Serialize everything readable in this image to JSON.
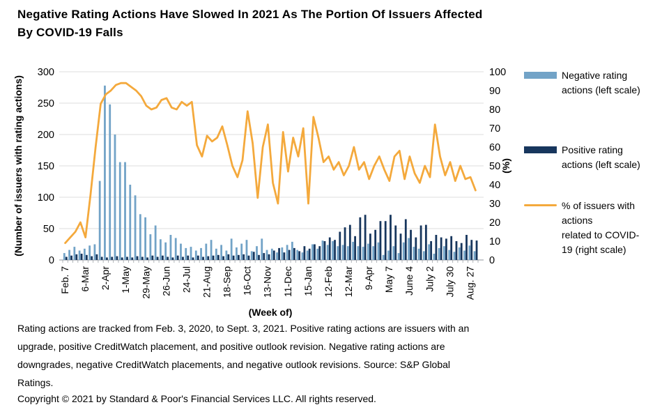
{
  "title": {
    "lines": [
      "Negative Rating Actions Have Slowed In 2021 As The Portion Of Issuers Affected",
      "By COVID-19 Falls"
    ]
  },
  "legend": {
    "items": [
      {
        "label": "Negative rating actions (left scale)",
        "lines": [
          "Negative rating",
          "actions (left scale)"
        ],
        "color": "#72A3C7"
      },
      {
        "label": "Positive rating actions (left scale)",
        "lines": [
          "Positive rating",
          "actions (left scale)"
        ],
        "color": "#17365D"
      },
      {
        "label": "% of issuers with actions related to COVID-19 (right scale)",
        "lines": [
          "% of issuers with",
          "actions",
          "related to COVID-",
          "19 (right scale)"
        ],
        "color": "#F4A93C"
      }
    ]
  },
  "chart_data": {
    "type": "bar",
    "subtype": "combo-bar-line",
    "x_axis_label": "(Week of)",
    "left_axis_label": "(Number of issuers with rating actions)",
    "right_axis_label": "(%)",
    "left_ylim": [
      0,
      300
    ],
    "right_ylim": [
      0,
      100
    ],
    "left_ticks": [
      0,
      50,
      100,
      150,
      200,
      250,
      300
    ],
    "right_ticks": [
      0,
      10,
      20,
      30,
      40,
      50,
      60,
      70,
      80,
      90,
      100
    ],
    "x_tick_labels": [
      "Feb. 7",
      "6-Mar",
      "2-Apr",
      "1-May",
      "29-May",
      "26-Jun",
      "24-Jul",
      "21-Aug",
      "18-Sep",
      "16-Oct",
      "13-Nov",
      "11-Dec",
      "15-Jan",
      "12-Feb",
      "12-Mar",
      "9-Apr",
      "May 7",
      "June 4",
      "July 2",
      "July 30",
      "Aug. 27"
    ],
    "x_tick_every": 4,
    "grid": "horizontal",
    "legend_position": "right",
    "series": [
      {
        "name": "Negative rating actions (left scale)",
        "type": "bar",
        "axis": "left",
        "color": "#72A3C7",
        "values": [
          11,
          16,
          21,
          15,
          18,
          23,
          25,
          126,
          278,
          248,
          200,
          156,
          156,
          120,
          103,
          73,
          68,
          41,
          55,
          33,
          28,
          40,
          35,
          26,
          19,
          21,
          15,
          19,
          26,
          32,
          18,
          24,
          15,
          34,
          20,
          26,
          32,
          14,
          22,
          34,
          16,
          18,
          12,
          20,
          24,
          29,
          16,
          12,
          15,
          25,
          18,
          31,
          24,
          30,
          22,
          24,
          22,
          29,
          22,
          21,
          26,
          22,
          28,
          8,
          15,
          22,
          11,
          28,
          35,
          21,
          18,
          14,
          25,
          10,
          19,
          22,
          16,
          13,
          20,
          15,
          23,
          14
        ]
      },
      {
        "name": "Positive rating actions (left scale)",
        "type": "bar",
        "axis": "left",
        "color": "#17365D",
        "values": [
          5,
          7,
          9,
          10,
          8,
          6,
          9,
          5,
          4,
          5,
          6,
          4,
          5,
          4,
          6,
          5,
          4,
          7,
          5,
          7,
          5,
          4,
          7,
          5,
          7,
          4,
          7,
          5,
          6,
          7,
          8,
          6,
          9,
          7,
          8,
          9,
          7,
          13,
          8,
          11,
          9,
          15,
          19,
          12,
          16,
          19,
          14,
          22,
          18,
          25,
          22,
          30,
          36,
          32,
          45,
          52,
          56,
          38,
          68,
          72,
          42,
          48,
          62,
          62,
          72,
          55,
          42,
          65,
          48,
          36,
          55,
          56,
          30,
          40,
          36,
          34,
          38,
          30,
          27,
          40,
          32,
          31
        ]
      },
      {
        "name": "% of issuers with actions related to COVID-19 (right scale)",
        "type": "line",
        "axis": "right",
        "color": "#F4A93C",
        "values": [
          9,
          12,
          15,
          20,
          12,
          35,
          60,
          83,
          88,
          90,
          93,
          94,
          94,
          92,
          90,
          87,
          82,
          80,
          81,
          85,
          86,
          81,
          80,
          84,
          82,
          84,
          61,
          55,
          66,
          63,
          65,
          71,
          61,
          50,
          44,
          53,
          79,
          62,
          33,
          60,
          72,
          41,
          30,
          68,
          47,
          65,
          55,
          70,
          30,
          76,
          65,
          52,
          55,
          48,
          52,
          45,
          50,
          60,
          48,
          52,
          43,
          50,
          55,
          48,
          42,
          55,
          58,
          43,
          55,
          46,
          41,
          50,
          44,
          72,
          55,
          45,
          52,
          42,
          50,
          43,
          44,
          37
        ]
      }
    ]
  },
  "footnote": {
    "lines": [
      "Rating actions are tracked from Feb. 3, 2020, to Sept. 3, 2021. Positive rating actions are issuers with an",
      "upgrade, positive CreditWatch placement, and positive outlook revision. Negative rating actions are",
      "downgrades, negative CreditWatch placements, and negative outlook revisions. Source: S&P Global",
      "Ratings."
    ]
  },
  "copyright": "Copyright © 2021 by Standard & Poor's Financial Services LLC. All rights reserved."
}
